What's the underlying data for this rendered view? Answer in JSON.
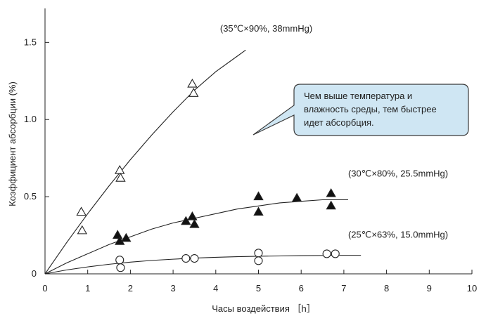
{
  "chart_data": {
    "type": "scatter",
    "title": "",
    "xlabel": "Часы воздействия ［h］",
    "ylabel": "Коэффициент абсорбции (%)",
    "xlim": [
      0,
      10
    ],
    "ylim": [
      0,
      1.72
    ],
    "x_ticks": [
      0,
      1,
      2,
      3,
      4,
      5,
      6,
      7,
      8,
      9,
      10
    ],
    "y_ticks": [
      0,
      0.5,
      1.0,
      1.5
    ],
    "x_tick_labels": [
      "0",
      "1",
      "2",
      "3",
      "4",
      "5",
      "6",
      "7",
      "8",
      "9",
      "10"
    ],
    "y_tick_labels": [
      "0",
      "0.5",
      "1.0",
      "1.5"
    ],
    "grid": false,
    "series": [
      {
        "name": "(35℃×90%, 38mmHg)",
        "marker": "triangle-open",
        "points": [
          {
            "x": 0.85,
            "y": 0.4
          },
          {
            "x": 0.87,
            "y": 0.28
          },
          {
            "x": 1.75,
            "y": 0.67
          },
          {
            "x": 1.77,
            "y": 0.62
          },
          {
            "x": 3.45,
            "y": 1.23
          },
          {
            "x": 3.48,
            "y": 1.17
          }
        ],
        "curve": [
          [
            0,
            0
          ],
          [
            0.5,
            0.2
          ],
          [
            1.0,
            0.39
          ],
          [
            1.5,
            0.57
          ],
          [
            2.0,
            0.74
          ],
          [
            2.5,
            0.9
          ],
          [
            3.0,
            1.05
          ],
          [
            3.5,
            1.19
          ],
          [
            4.0,
            1.31
          ],
          [
            4.5,
            1.41
          ],
          [
            4.7,
            1.45
          ]
        ]
      },
      {
        "name": "(30℃×80%, 25.5mmHg)",
        "marker": "triangle-filled",
        "points": [
          {
            "x": 1.7,
            "y": 0.25
          },
          {
            "x": 1.75,
            "y": 0.21
          },
          {
            "x": 1.9,
            "y": 0.23
          },
          {
            "x": 3.3,
            "y": 0.34
          },
          {
            "x": 3.45,
            "y": 0.37
          },
          {
            "x": 3.5,
            "y": 0.32
          },
          {
            "x": 5.0,
            "y": 0.5
          },
          {
            "x": 5.0,
            "y": 0.4
          },
          {
            "x": 5.9,
            "y": 0.49
          },
          {
            "x": 6.7,
            "y": 0.52
          },
          {
            "x": 6.7,
            "y": 0.44
          }
        ],
        "curve": [
          [
            0,
            0
          ],
          [
            0.5,
            0.07
          ],
          [
            1.0,
            0.13
          ],
          [
            1.5,
            0.19
          ],
          [
            2.0,
            0.24
          ],
          [
            2.5,
            0.29
          ],
          [
            3.0,
            0.33
          ],
          [
            3.5,
            0.36
          ],
          [
            4.0,
            0.39
          ],
          [
            4.5,
            0.42
          ],
          [
            5.0,
            0.44
          ],
          [
            5.5,
            0.46
          ],
          [
            6.0,
            0.47
          ],
          [
            6.5,
            0.48
          ],
          [
            7.1,
            0.48
          ]
        ]
      },
      {
        "name": "(25℃×63%, 15.0mmHg)",
        "marker": "circle-open",
        "points": [
          {
            "x": 1.75,
            "y": 0.09
          },
          {
            "x": 1.77,
            "y": 0.04
          },
          {
            "x": 3.3,
            "y": 0.1
          },
          {
            "x": 3.5,
            "y": 0.1
          },
          {
            "x": 5.0,
            "y": 0.135
          },
          {
            "x": 5.0,
            "y": 0.085
          },
          {
            "x": 6.6,
            "y": 0.13
          },
          {
            "x": 6.8,
            "y": 0.13
          }
        ],
        "curve": [
          [
            0,
            0
          ],
          [
            0.5,
            0.025
          ],
          [
            1.0,
            0.045
          ],
          [
            1.5,
            0.062
          ],
          [
            2.0,
            0.076
          ],
          [
            2.5,
            0.087
          ],
          [
            3.0,
            0.095
          ],
          [
            3.5,
            0.102
          ],
          [
            4.0,
            0.107
          ],
          [
            4.5,
            0.111
          ],
          [
            5.0,
            0.114
          ],
          [
            6.0,
            0.118
          ],
          [
            7.0,
            0.12
          ],
          [
            7.4,
            0.12
          ]
        ]
      }
    ],
    "series_label_anchor_x": [
      4.1,
      7.1,
      7.1
    ],
    "series_label_anchor_y": [
      1.57,
      0.63,
      0.235
    ],
    "callout": {
      "lines": [
        "Чем выше температура и",
        "влажность среды, тем быстрее",
        "идет абсорбция."
      ],
      "fill": "#cfe6f3",
      "stroke": "#3a3a3a"
    }
  }
}
